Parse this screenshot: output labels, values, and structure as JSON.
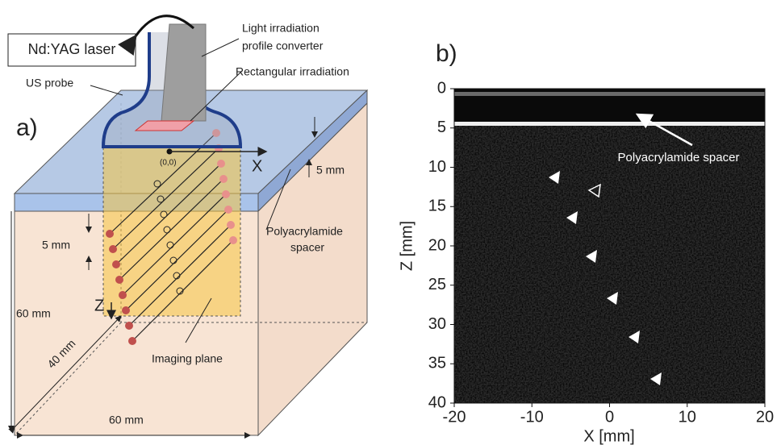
{
  "panel_a": {
    "label": "a)",
    "laser": "Nd:YAG laser",
    "converter": [
      "Light irradiation",
      "profile converter"
    ],
    "irradiation": "Rectangular irradiation",
    "probe": "US probe",
    "origin": "(0,0)",
    "x_axis": "X",
    "z_axis": "Z",
    "spacer_thickness": "5 mm",
    "spacing": "5 mm",
    "spacer": [
      "Polyacrylamide",
      "spacer"
    ],
    "height": "60 mm",
    "depth": "40 mm",
    "width": "60 mm",
    "imaging_plane": "Imaging plane"
  },
  "panel_b": {
    "label": "b)",
    "annotation": "Polyacrylamide spacer",
    "xlabel": "X [mm]",
    "ylabel": "Z [mm]",
    "xlim": [
      -20,
      20
    ],
    "ylim": [
      0,
      40
    ],
    "xticks": [
      -20,
      -10,
      0,
      10,
      20
    ],
    "yticks": [
      0,
      5,
      10,
      15,
      20,
      25,
      30,
      35,
      40
    ]
  }
}
